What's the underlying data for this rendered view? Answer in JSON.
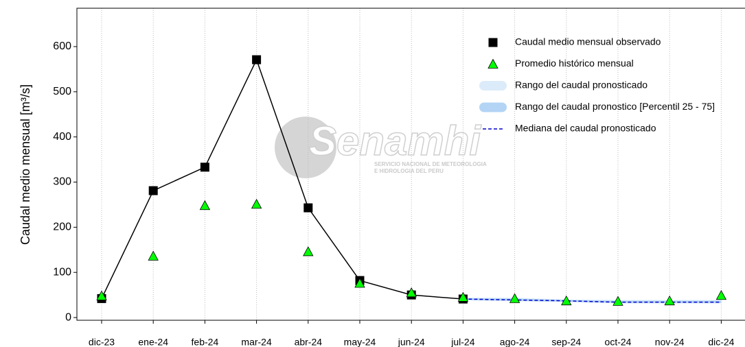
{
  "chart_data": {
    "type": "line",
    "y_label": "Caudal medio mensual [m³/s]",
    "watermark": {
      "name": "Senamhi",
      "line1": "SERVICIO NACIONAL DE METEOROLOGIA",
      "line2": "E HIDROLOGIA DEL PERU"
    },
    "categories": [
      "dic-23",
      "ene-24",
      "feb-24",
      "mar-24",
      "abr-24",
      "may-24",
      "jun-24",
      "jul-24",
      "ago-24",
      "sep-24",
      "oct-24",
      "nov-24",
      "dic-24"
    ],
    "ylim": [
      -6,
      685
    ],
    "yticks": [
      0,
      100,
      200,
      300,
      400,
      500,
      600
    ],
    "grid": "x",
    "series": [
      {
        "name": "Caudal medio mensual observado",
        "color": "#000000",
        "marker": "square",
        "line": "solid",
        "values": [
          42,
          281,
          333,
          571,
          243,
          82,
          50,
          41,
          null,
          null,
          null,
          null,
          null
        ]
      },
      {
        "name": "Promedio histórico mensual",
        "color": "#00ff00",
        "marker": "triangle",
        "line": "none",
        "values": [
          48,
          136,
          248,
          251,
          146,
          76,
          55,
          45,
          42,
          37,
          36,
          37,
          49
        ]
      },
      {
        "name": "Rango del caudal pronosticado",
        "color": "#dcebfa",
        "band": true,
        "low": [
          null,
          null,
          null,
          null,
          null,
          null,
          null,
          38,
          36,
          34,
          31,
          31,
          31
        ],
        "high": [
          null,
          null,
          null,
          null,
          null,
          null,
          null,
          44,
          44,
          40,
          39,
          39,
          39
        ]
      },
      {
        "name": "Rango del caudal pronostico [Percentil 25 - 75]",
        "color": "#b3d4f5",
        "band": true,
        "low": [
          null,
          null,
          null,
          null,
          null,
          null,
          null,
          39,
          37,
          35,
          33,
          33,
          33
        ],
        "high": [
          null,
          null,
          null,
          null,
          null,
          null,
          null,
          43,
          42,
          39,
          37,
          37,
          37
        ]
      },
      {
        "name": "Mediana del caudal pronosticado",
        "color": "#0000cc",
        "marker": "none",
        "line": "dashed",
        "values": [
          null,
          null,
          null,
          null,
          null,
          null,
          null,
          41,
          39,
          37,
          34,
          34,
          34
        ]
      }
    ]
  }
}
